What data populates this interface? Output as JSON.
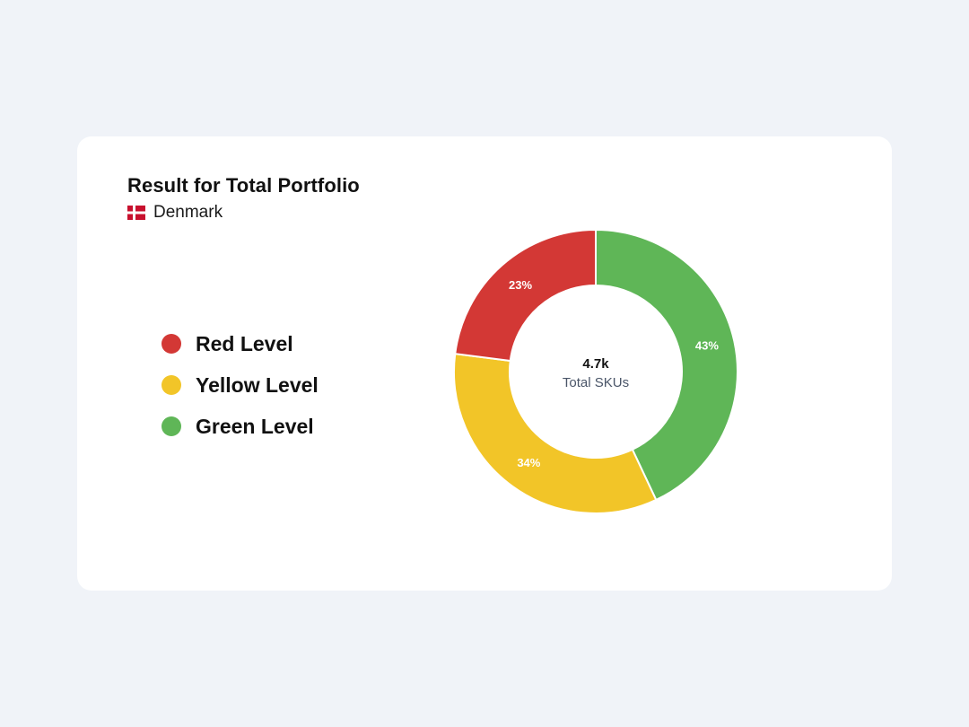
{
  "card": {
    "title": "Result for Total Portfolio",
    "region": {
      "label": "Denmark",
      "flag_icon": "denmark-flag-icon",
      "flag_colors": [
        "#c8102e",
        "#ffffff"
      ]
    }
  },
  "legend": {
    "items": [
      {
        "label": "Red Level",
        "color": "#d33835"
      },
      {
        "label": "Yellow Level",
        "color": "#f2c528"
      },
      {
        "label": "Green Level",
        "color": "#5fb657"
      }
    ]
  },
  "chart_data": {
    "type": "pie",
    "variant": "donut",
    "start": "top",
    "direction": "clockwise",
    "slices": [
      {
        "name": "Green Level",
        "value": 43,
        "label": "43%",
        "color": "#5fb657"
      },
      {
        "name": "Yellow Level",
        "value": 34,
        "label": "34%",
        "color": "#f2c528"
      },
      {
        "name": "Red Level",
        "value": 23,
        "label": "23%",
        "color": "#d33835"
      }
    ],
    "center": {
      "value": "4.7k",
      "caption": "Total SKUs"
    }
  }
}
